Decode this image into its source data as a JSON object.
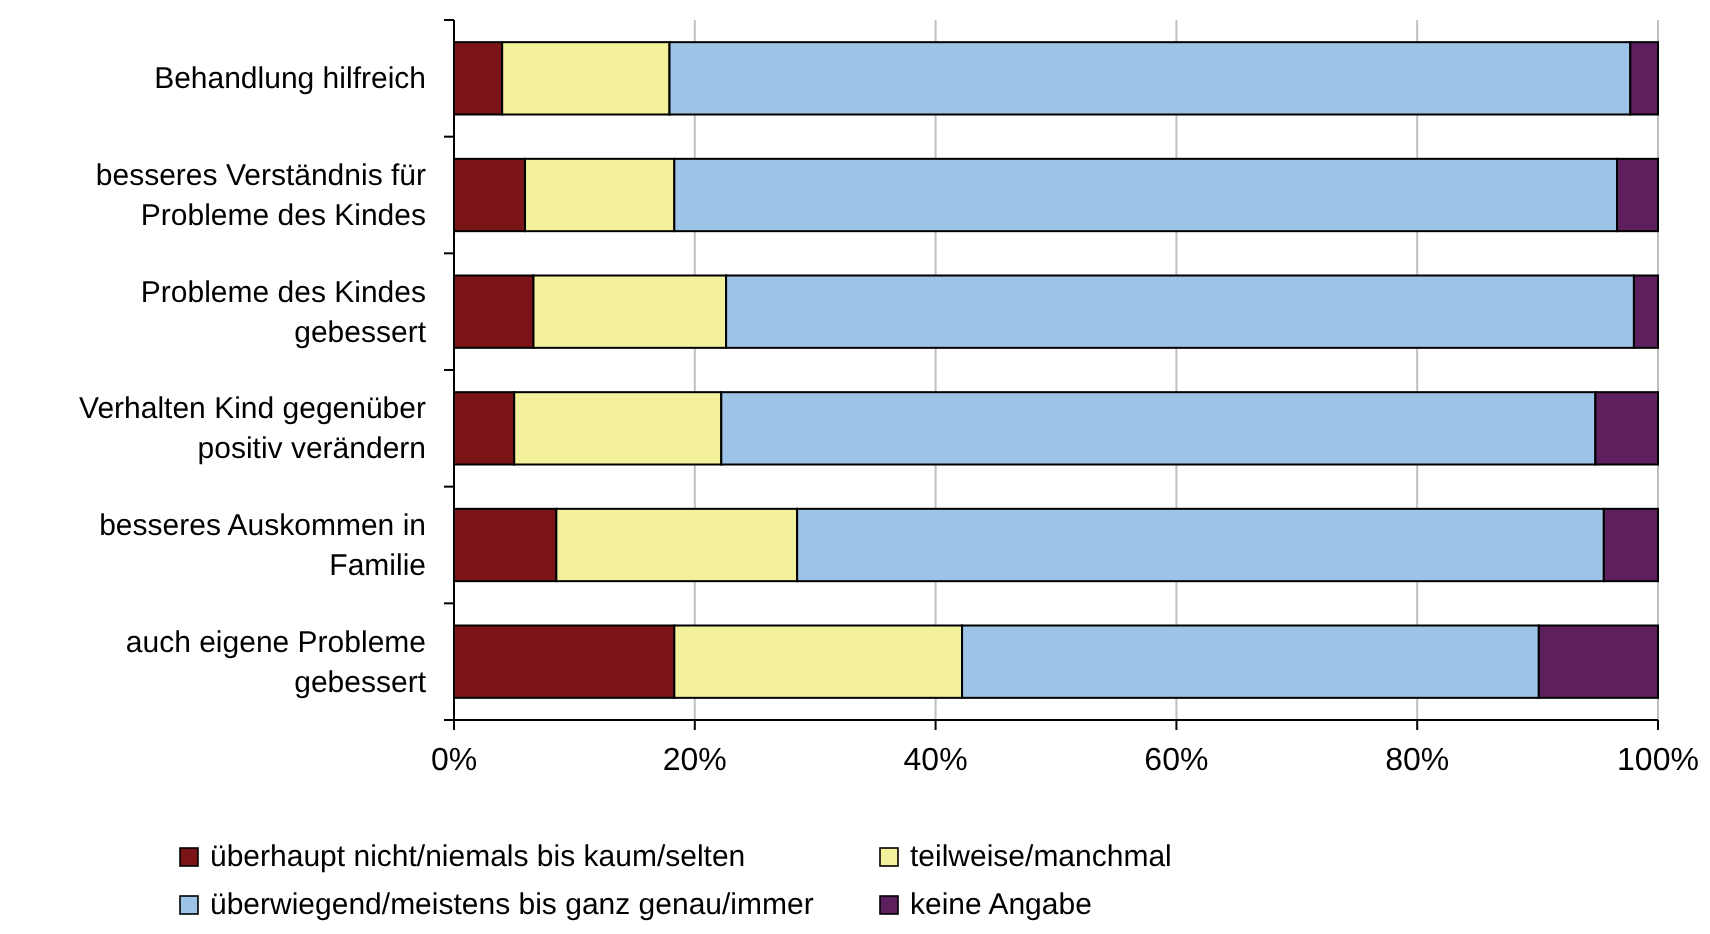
{
  "chart_data": {
    "type": "bar",
    "orientation": "horizontal",
    "stacked": true,
    "categories": [
      "Behandlung hilfreich",
      "besseres Verständnis für Probleme des Kindes",
      "Probleme des Kindes gebessert",
      "Verhalten Kind gegenüber positiv verändern",
      "besseres Auskommen in Familie",
      "auch eigene Probleme gebessert"
    ],
    "series": [
      {
        "name": "überhaupt nicht/niemals bis kaum/selten",
        "color": "#7b1416",
        "values": [
          4.0,
          5.9,
          6.6,
          5.0,
          8.5,
          18.3
        ]
      },
      {
        "name": "teilweise/manchmal",
        "color": "#f4f19c",
        "values": [
          13.9,
          12.4,
          16.0,
          17.2,
          20.0,
          23.9
        ]
      },
      {
        "name": "überwiegend/meistens bis ganz genau/immer",
        "color": "#9dc3e6",
        "values": [
          79.8,
          78.3,
          75.4,
          72.6,
          67.0,
          47.9
        ]
      },
      {
        "name": "keine Angabe",
        "color": "#5e1f5e",
        "values": [
          2.3,
          3.4,
          2.0,
          5.2,
          4.5,
          9.9
        ]
      }
    ],
    "xlim": [
      0,
      100
    ],
    "xticks": [
      {
        "value": 0,
        "label": "0%"
      },
      {
        "value": 20,
        "label": "20%"
      },
      {
        "value": 40,
        "label": "40%"
      },
      {
        "value": 60,
        "label": "60%"
      },
      {
        "value": 80,
        "label": "80%"
      },
      {
        "value": 100,
        "label": "100%"
      }
    ],
    "grid": "x",
    "legend": "bottom"
  }
}
